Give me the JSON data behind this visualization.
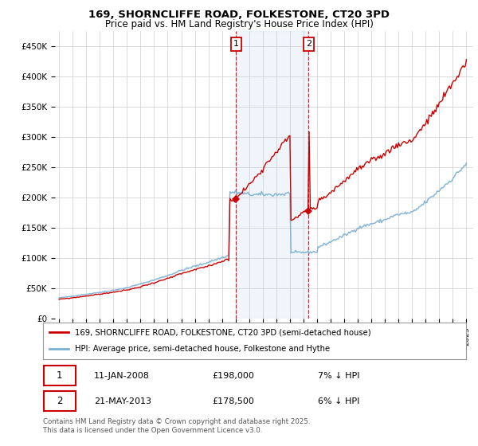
{
  "title_line1": "169, SHORNCLIFFE ROAD, FOLKESTONE, CT20 3PD",
  "title_line2": "Price paid vs. HM Land Registry's House Price Index (HPI)",
  "ylabel_ticks": [
    "£0",
    "£50K",
    "£100K",
    "£150K",
    "£200K",
    "£250K",
    "£300K",
    "£350K",
    "£400K",
    "£450K"
  ],
  "ytick_values": [
    0,
    50000,
    100000,
    150000,
    200000,
    250000,
    300000,
    350000,
    400000,
    450000
  ],
  "ylim": [
    0,
    475000
  ],
  "year_start": 1995,
  "year_end": 2025,
  "sale1_date": "11-JAN-2008",
  "sale1_price": 198000,
  "sale1_label": "1",
  "sale1_year": 2008.03,
  "sale2_date": "21-MAY-2013",
  "sale2_price": 178500,
  "sale2_label": "2",
  "sale2_year": 2013.38,
  "legend_line1": "169, SHORNCLIFFE ROAD, FOLKESTONE, CT20 3PD (semi-detached house)",
  "legend_line2": "HPI: Average price, semi-detached house, Folkestone and Hythe",
  "footer": "Contains HM Land Registry data © Crown copyright and database right 2025.\nThis data is licensed under the Open Government Licence v3.0.",
  "line_color_property": "#cc0000",
  "line_color_hpi": "#7bafd4",
  "shade_color": "#ddeeff",
  "annotation_box_color": "#cc0000",
  "background_color": "#ffffff",
  "grid_color": "#cccccc"
}
